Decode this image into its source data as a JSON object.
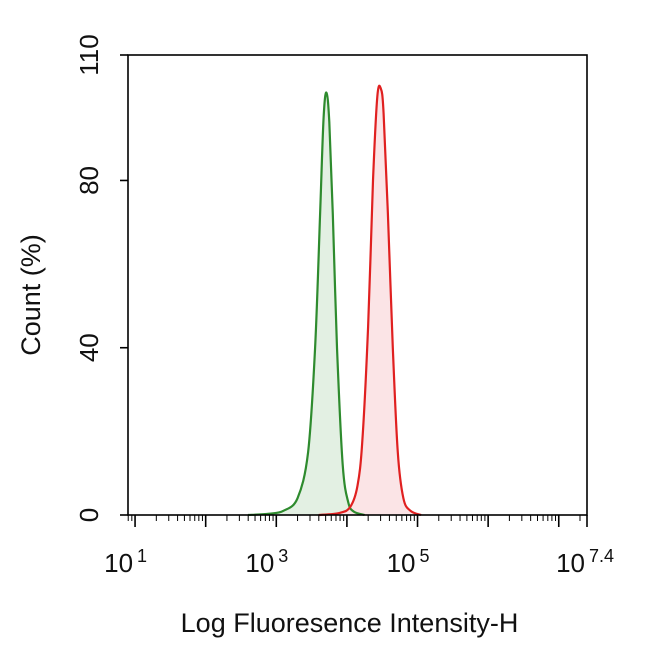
{
  "chart_data": {
    "type": "area",
    "xlabel": "Log Fluoresence Intensity-H",
    "ylabel": "Count (%)",
    "x_scale": "log",
    "xlim_log10": [
      0.9,
      7.4
    ],
    "ylim": [
      0,
      110
    ],
    "grid": false,
    "legend": "none",
    "x_ticks": [
      {
        "base": "10",
        "exp": "1",
        "log10": 1
      },
      {
        "base": "10",
        "exp": "3",
        "log10": 3
      },
      {
        "base": "10",
        "exp": "5",
        "log10": 5
      },
      {
        "base": "10",
        "exp": "7.4",
        "log10": 7.4
      }
    ],
    "y_ticks": [
      {
        "label": "0",
        "value": 0
      },
      {
        "label": "40",
        "value": 40
      },
      {
        "label": "80",
        "value": 80
      },
      {
        "label": "110",
        "value": 110
      }
    ],
    "series": [
      {
        "color": "#2e8b2e",
        "fill": "#e3f0e3",
        "points": [
          [
            2.6,
            0
          ],
          [
            2.9,
            0.3
          ],
          [
            3.1,
            1.0
          ],
          [
            3.3,
            4
          ],
          [
            3.45,
            15
          ],
          [
            3.55,
            40
          ],
          [
            3.62,
            72
          ],
          [
            3.67,
            95
          ],
          [
            3.71,
            101
          ],
          [
            3.75,
            94
          ],
          [
            3.8,
            72
          ],
          [
            3.86,
            40
          ],
          [
            3.94,
            12
          ],
          [
            4.02,
            3
          ],
          [
            4.1,
            0.8
          ],
          [
            4.25,
            0
          ]
        ]
      },
      {
        "color": "#e02020",
        "fill": "#fbe4e6",
        "points": [
          [
            3.6,
            0
          ],
          [
            3.9,
            0.5
          ],
          [
            4.05,
            2
          ],
          [
            4.15,
            7
          ],
          [
            4.22,
            18
          ],
          [
            4.3,
            45
          ],
          [
            4.37,
            80
          ],
          [
            4.43,
            100
          ],
          [
            4.48,
            102
          ],
          [
            4.52,
            96
          ],
          [
            4.58,
            72
          ],
          [
            4.65,
            40
          ],
          [
            4.72,
            15
          ],
          [
            4.8,
            4
          ],
          [
            4.9,
            1
          ],
          [
            5.05,
            0
          ]
        ]
      }
    ]
  }
}
